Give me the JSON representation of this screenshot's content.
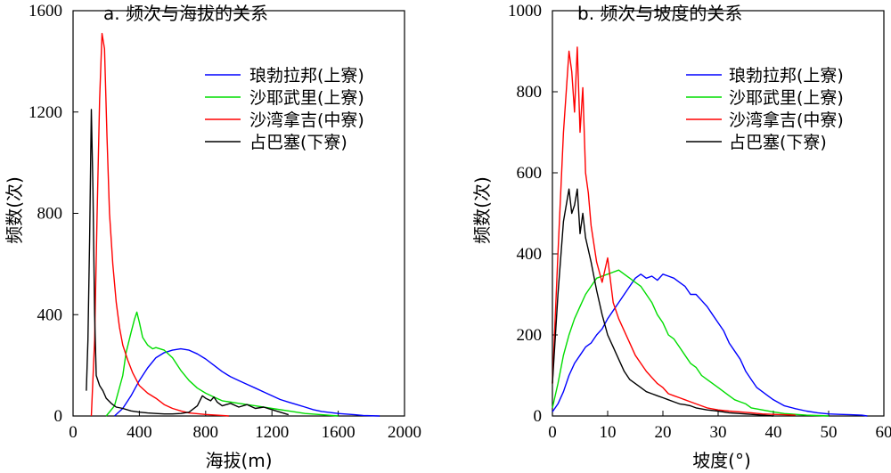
{
  "colors": {
    "langle": "#0000ff",
    "shaye": "#00dd00",
    "shawan": "#ff0000",
    "zhanba": "#000000"
  },
  "chart_data": [
    {
      "type": "line",
      "title": "a. 频次与海拔的关系",
      "xlabel": "海拔(m)",
      "ylabel": "频数(次)",
      "xlim": [
        0,
        2000
      ],
      "ylim": [
        0,
        1600
      ],
      "xticks": [
        0,
        400,
        800,
        1200,
        1600,
        2000
      ],
      "yticks": [
        0,
        400,
        800,
        1200,
        1600
      ],
      "legend_position": "top-right",
      "series": [
        {
          "name": "琅勃拉邦(上寮)",
          "key": "langle",
          "x": [
            250,
            300,
            350,
            400,
            450,
            500,
            550,
            600,
            650,
            700,
            750,
            800,
            850,
            900,
            950,
            1000,
            1050,
            1100,
            1150,
            1200,
            1250,
            1300,
            1350,
            1400,
            1450,
            1500,
            1600,
            1700,
            1750,
            1850
          ],
          "y": [
            0,
            30,
            80,
            140,
            190,
            230,
            250,
            260,
            265,
            260,
            245,
            225,
            200,
            175,
            155,
            140,
            125,
            110,
            95,
            80,
            65,
            55,
            45,
            35,
            25,
            18,
            10,
            5,
            2,
            0
          ]
        },
        {
          "name": "沙耶武里(上寮)",
          "key": "shaye",
          "x": [
            200,
            250,
            300,
            320,
            350,
            370,
            385,
            400,
            420,
            450,
            480,
            500,
            550,
            600,
            650,
            700,
            750,
            800,
            850,
            900,
            1000,
            1100,
            1200,
            1300,
            1400,
            1500,
            1600
          ],
          "y": [
            0,
            40,
            160,
            250,
            330,
            380,
            410,
            370,
            310,
            280,
            265,
            270,
            260,
            230,
            180,
            140,
            110,
            90,
            75,
            60,
            50,
            40,
            30,
            20,
            10,
            5,
            0
          ]
        },
        {
          "name": "沙湾拿吉(中寮)",
          "key": "shawan",
          "x": [
            110,
            130,
            145,
            160,
            175,
            190,
            205,
            220,
            240,
            260,
            280,
            300,
            330,
            360,
            400,
            450,
            500,
            550,
            600,
            650,
            700,
            800,
            900,
            940
          ],
          "y": [
            0,
            300,
            800,
            1250,
            1510,
            1450,
            1100,
            800,
            600,
            450,
            350,
            280,
            220,
            170,
            120,
            90,
            70,
            45,
            30,
            20,
            12,
            6,
            2,
            0
          ]
        },
        {
          "name": "占巴塞(下寮)",
          "key": "zhanba",
          "x": [
            80,
            90,
            100,
            110,
            120,
            130,
            140,
            160,
            180,
            200,
            230,
            260,
            300,
            350,
            400,
            450,
            500,
            550,
            600,
            650,
            700,
            750,
            780,
            800,
            830,
            850,
            870,
            900,
            950,
            1000,
            1050,
            1100,
            1150,
            1200,
            1250,
            1300
          ],
          "y": [
            100,
            300,
            700,
            1210,
            900,
            400,
            160,
            120,
            100,
            70,
            50,
            35,
            30,
            20,
            15,
            12,
            10,
            8,
            8,
            10,
            15,
            40,
            80,
            70,
            60,
            75,
            55,
            40,
            50,
            35,
            45,
            30,
            35,
            25,
            15,
            5
          ]
        }
      ]
    },
    {
      "type": "line",
      "title": "b. 频次与坡度的关系",
      "xlabel": "坡度(°)",
      "ylabel": "频数(次)",
      "xlim": [
        0,
        60
      ],
      "ylim": [
        0,
        1000
      ],
      "xticks": [
        0,
        10,
        20,
        30,
        40,
        50,
        60
      ],
      "yticks": [
        0,
        200,
        400,
        600,
        800,
        1000
      ],
      "legend_position": "top-right",
      "series": [
        {
          "name": "琅勃拉邦(上寮)",
          "key": "langle",
          "x": [
            0,
            1,
            2,
            3,
            4,
            5,
            6,
            7,
            8,
            9,
            10,
            11,
            12,
            13,
            14,
            15,
            16,
            17,
            18,
            19,
            20,
            21,
            22,
            23,
            24,
            25,
            26,
            27,
            28,
            29,
            30,
            31,
            32,
            33,
            34,
            35,
            36,
            37,
            38,
            39,
            40,
            42,
            44,
            46,
            48,
            50,
            52,
            54,
            56,
            57
          ],
          "y": [
            10,
            30,
            60,
            100,
            130,
            150,
            170,
            180,
            200,
            215,
            240,
            260,
            280,
            300,
            320,
            340,
            350,
            340,
            345,
            335,
            350,
            345,
            340,
            330,
            320,
            300,
            300,
            285,
            270,
            250,
            230,
            210,
            180,
            160,
            140,
            110,
            90,
            70,
            60,
            50,
            40,
            25,
            18,
            12,
            8,
            5,
            4,
            3,
            2,
            0
          ]
        },
        {
          "name": "沙耶武里(上寮)",
          "key": "shaye",
          "x": [
            0,
            1,
            2,
            3,
            4,
            5,
            6,
            7,
            8,
            9,
            10,
            11,
            12,
            13,
            14,
            15,
            16,
            17,
            18,
            19,
            20,
            21,
            22,
            23,
            24,
            25,
            26,
            27,
            28,
            29,
            30,
            31,
            32,
            33,
            34,
            35,
            36,
            38,
            40,
            42,
            44,
            46,
            48,
            50
          ],
          "y": [
            20,
            80,
            150,
            200,
            240,
            270,
            300,
            320,
            340,
            345,
            350,
            355,
            360,
            350,
            340,
            330,
            320,
            300,
            280,
            250,
            230,
            200,
            190,
            170,
            150,
            130,
            120,
            100,
            90,
            80,
            70,
            60,
            50,
            40,
            35,
            30,
            20,
            15,
            10,
            6,
            4,
            2,
            1,
            0
          ]
        },
        {
          "name": "沙湾拿吉(中寮)",
          "key": "shawan",
          "x": [
            0,
            1,
            2,
            2.5,
            3,
            3.5,
            4,
            4.5,
            5,
            5.5,
            6,
            6.5,
            7,
            8,
            9,
            10,
            11,
            12,
            13,
            14,
            15,
            16,
            17,
            18,
            19,
            20,
            21,
            22,
            23,
            24,
            25,
            26,
            28,
            30,
            32,
            34,
            36,
            38,
            40,
            42,
            44
          ],
          "y": [
            80,
            400,
            700,
            800,
            900,
            850,
            750,
            910,
            700,
            810,
            600,
            550,
            470,
            380,
            330,
            390,
            280,
            240,
            210,
            180,
            150,
            130,
            110,
            95,
            80,
            70,
            55,
            50,
            45,
            40,
            35,
            30,
            20,
            15,
            12,
            10,
            8,
            5,
            4,
            3,
            2
          ]
        },
        {
          "name": "占巴塞(下寮)",
          "key": "zhanba",
          "x": [
            0,
            1,
            2,
            3,
            3.5,
            4,
            4.5,
            5,
            5.5,
            6,
            7,
            8,
            9,
            10,
            11,
            12,
            13,
            14,
            15,
            16,
            17,
            18,
            19,
            20,
            21,
            22,
            23,
            24,
            25,
            26,
            28,
            30,
            32,
            34,
            36,
            38,
            40
          ],
          "y": [
            80,
            300,
            480,
            560,
            500,
            520,
            560,
            450,
            500,
            440,
            380,
            310,
            250,
            200,
            170,
            140,
            110,
            90,
            80,
            70,
            60,
            55,
            50,
            45,
            40,
            35,
            30,
            28,
            25,
            20,
            15,
            12,
            8,
            6,
            4,
            2,
            0
          ]
        }
      ]
    }
  ]
}
